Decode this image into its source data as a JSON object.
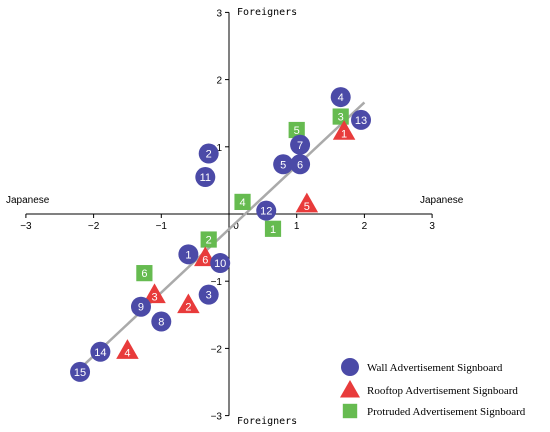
{
  "chart_data": {
    "type": "scatter",
    "x_axis": {
      "range": [
        -3,
        3
      ],
      "ticks": [
        -3,
        -2,
        -1,
        0,
        1,
        2,
        3
      ],
      "tick_labels": [
        "−3",
        "−2",
        "−1",
        "0",
        "1",
        "2",
        "3"
      ],
      "left_label": "Japanese",
      "right_label": "Japanese"
    },
    "y_axis": {
      "range": [
        -3,
        3
      ],
      "ticks": [
        3,
        2,
        1,
        0,
        -1,
        -2,
        -3
      ],
      "tick_labels": [
        "3",
        "2",
        "1",
        "0",
        "−1",
        "−2",
        "−3"
      ],
      "top_label": "Foreigners",
      "bottom_label": "Foreigners"
    },
    "grid": false,
    "trend_line": {
      "from": [
        -2.2,
        -2.3
      ],
      "to": [
        2.0,
        1.66
      ],
      "color": "#aaaaaa"
    },
    "legend_position": "bottom-right",
    "series": [
      {
        "name": "Wall Advertisement Signboard",
        "marker": "circle",
        "color": "#4b4aa7",
        "points": [
          {
            "label": "1",
            "x": -0.6,
            "y": -0.6
          },
          {
            "label": "2",
            "x": -0.3,
            "y": 0.9
          },
          {
            "label": "3",
            "x": -0.3,
            "y": -1.2
          },
          {
            "label": "4",
            "x": 1.65,
            "y": 1.74
          },
          {
            "label": "5",
            "x": 0.8,
            "y": 0.74
          },
          {
            "label": "6",
            "x": 1.05,
            "y": 0.74
          },
          {
            "label": "7",
            "x": 1.05,
            "y": 1.03
          },
          {
            "label": "8",
            "x": -1.0,
            "y": -1.6
          },
          {
            "label": "9",
            "x": -1.3,
            "y": -1.38
          },
          {
            "label": "10",
            "x": -0.13,
            "y": -0.73
          },
          {
            "label": "11",
            "x": -0.35,
            "y": 0.55
          },
          {
            "label": "12",
            "x": 0.55,
            "y": 0.05
          },
          {
            "label": "13",
            "x": 1.95,
            "y": 1.4
          },
          {
            "label": "14",
            "x": -1.9,
            "y": -2.05
          },
          {
            "label": "15",
            "x": -2.2,
            "y": -2.35
          }
        ]
      },
      {
        "name": "Rooftop Advertisement Signboard",
        "marker": "triangle",
        "color": "#e83b3b",
        "points": [
          {
            "label": "1",
            "x": 1.7,
            "y": 1.23
          },
          {
            "label": "2",
            "x": -0.6,
            "y": -1.35
          },
          {
            "label": "3",
            "x": -1.1,
            "y": -1.2
          },
          {
            "label": "4",
            "x": -1.5,
            "y": -2.03
          },
          {
            "label": "5",
            "x": 1.15,
            "y": 0.15
          },
          {
            "label": "6",
            "x": -0.35,
            "y": -0.65
          }
        ]
      },
      {
        "name": "Protruded Advertisement Signboard",
        "marker": "square",
        "color": "#66bb50",
        "points": [
          {
            "label": "1",
            "x": 0.65,
            "y": -0.22
          },
          {
            "label": "2",
            "x": -0.3,
            "y": -0.38
          },
          {
            "label": "3",
            "x": 1.65,
            "y": 1.45
          },
          {
            "label": "4",
            "x": 0.2,
            "y": 0.18
          },
          {
            "label": "5",
            "x": 1.0,
            "y": 1.25
          },
          {
            "label": "6",
            "x": -1.25,
            "y": -0.88
          }
        ]
      }
    ]
  }
}
